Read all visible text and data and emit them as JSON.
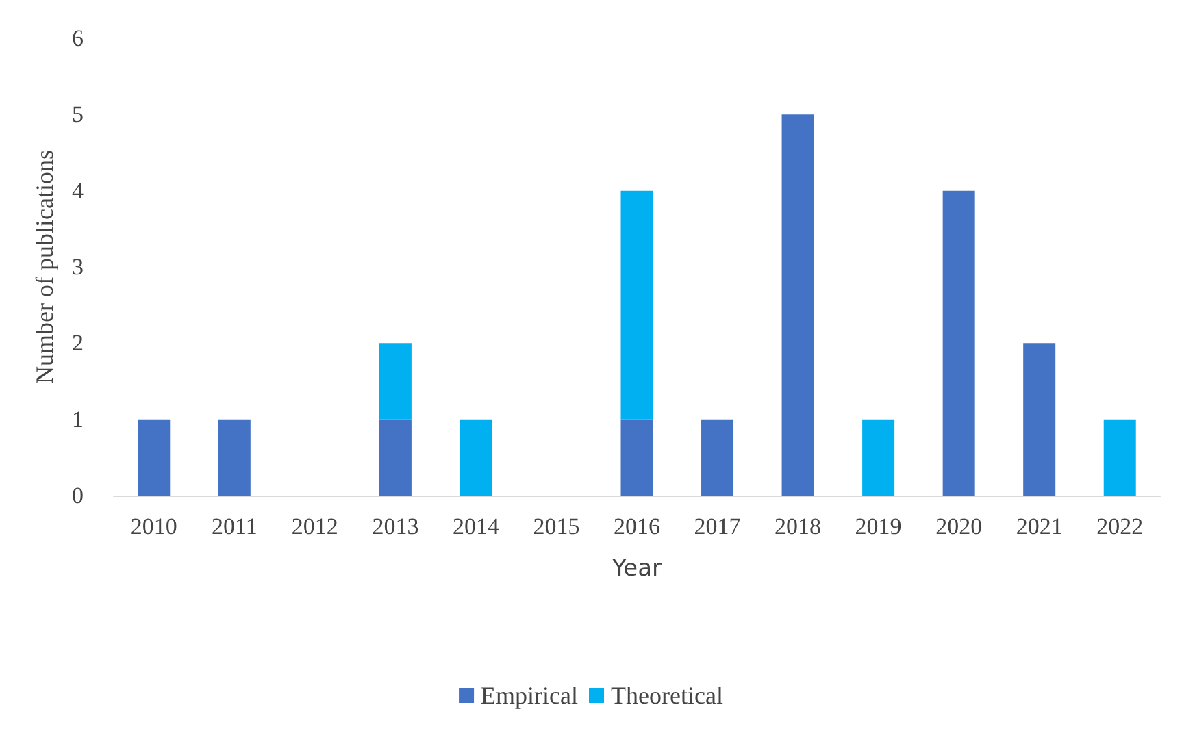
{
  "chart_data": {
    "type": "bar",
    "xlabel": "Year",
    "ylabel": "Number of publications",
    "categories": [
      "2010",
      "2011",
      "2012",
      "2013",
      "2014",
      "2015",
      "2016",
      "2017",
      "2018",
      "2019",
      "2020",
      "2021",
      "2022"
    ],
    "series": [
      {
        "name": "Empirical",
        "color": "#4472c4",
        "values": [
          1,
          1,
          0,
          1,
          0,
          0,
          1,
          1,
          5,
          0,
          4,
          2,
          0
        ]
      },
      {
        "name": "Theoretical",
        "color": "#00b0f0",
        "values": [
          0,
          0,
          0,
          1,
          1,
          0,
          3,
          0,
          0,
          1,
          0,
          0,
          1
        ]
      }
    ],
    "stacked": true,
    "ylim": [
      0,
      6
    ],
    "yticks": [
      0,
      1,
      2,
      3,
      4,
      5,
      6
    ],
    "grid": false,
    "legend": "bottom"
  }
}
